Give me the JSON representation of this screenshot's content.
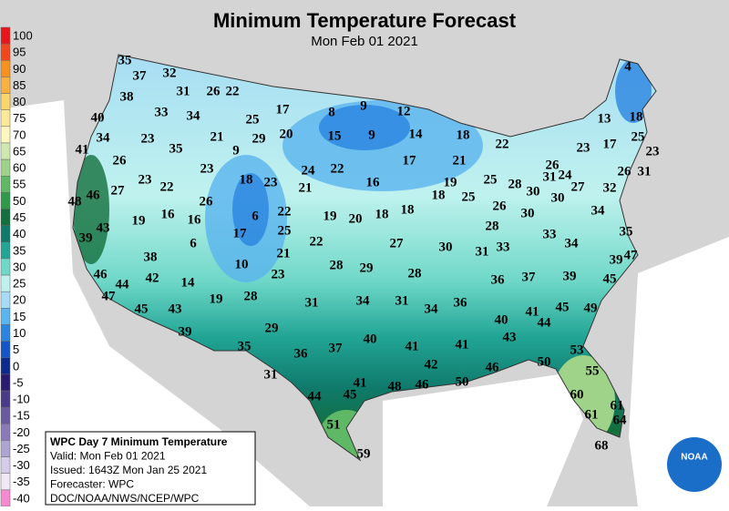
{
  "header": {
    "title": "Minimum Temperature Forecast",
    "subtitle": "Mon Feb 01 2021"
  },
  "legend": [
    {
      "value": 100,
      "color": "#e8161b"
    },
    {
      "value": 95,
      "color": "#f2461e"
    },
    {
      "value": 90,
      "color": "#f7921e"
    },
    {
      "value": 85,
      "color": "#fbb040"
    },
    {
      "value": 80,
      "color": "#fdd66a"
    },
    {
      "value": 75,
      "color": "#fde99a"
    },
    {
      "value": 70,
      "color": "#fff6c0"
    },
    {
      "value": 65,
      "color": "#cfe8b0"
    },
    {
      "value": 60,
      "color": "#9fd38a"
    },
    {
      "value": 55,
      "color": "#5fb865"
    },
    {
      "value": 50,
      "color": "#2e9a4a"
    },
    {
      "value": 45,
      "color": "#136f3c"
    },
    {
      "value": 40,
      "color": "#0f7a6c"
    },
    {
      "value": 35,
      "color": "#22a595"
    },
    {
      "value": 30,
      "color": "#6fd8c8"
    },
    {
      "value": 25,
      "color": "#bff2ee"
    },
    {
      "value": 20,
      "color": "#a6dcf4"
    },
    {
      "value": 15,
      "color": "#5ab4ee"
    },
    {
      "value": 10,
      "color": "#2a84e0"
    },
    {
      "value": 5,
      "color": "#1456c8"
    },
    {
      "value": 0,
      "color": "#0a2a8c"
    },
    {
      "value": -5,
      "color": "#2a1a70"
    },
    {
      "value": -10,
      "color": "#4a3a8a"
    },
    {
      "value": -15,
      "color": "#6a5aa0"
    },
    {
      "value": -20,
      "color": "#8a7ab8"
    },
    {
      "value": -25,
      "color": "#aea4d0"
    },
    {
      "value": -30,
      "color": "#d4cce8"
    },
    {
      "value": -35,
      "color": "#f0e8f4"
    },
    {
      "value": -40,
      "color": "#f58ad0"
    }
  ],
  "info_box": [
    "WPC Day 7 Minimum Temperature",
    "Valid: Mon Feb 01 2021",
    "Issued: 1643Z Mon Jan 25 2021",
    "Forecaster: WPC",
    "DOC/NOAA/NWS/NCEP/WPC"
  ],
  "logo": "NOAA",
  "stations": [
    35,
    37,
    32,
    31,
    26,
    22,
    38,
    40,
    33,
    34,
    25,
    17,
    8,
    9,
    12,
    4,
    13,
    18,
    41,
    34,
    23,
    35,
    21,
    9,
    29,
    20,
    15,
    9,
    14,
    18,
    22,
    23,
    17,
    25,
    23,
    26,
    23,
    24,
    22,
    17,
    21,
    16,
    19,
    25,
    26,
    31,
    24,
    26,
    31,
    23,
    22,
    18,
    23,
    21,
    18,
    25,
    26,
    28,
    30,
    30,
    27,
    32,
    48,
    46,
    27,
    26,
    22,
    19,
    20,
    18,
    18,
    30,
    34,
    19,
    16,
    16,
    6,
    25,
    28,
    43,
    17,
    22,
    27,
    30,
    31,
    33,
    33,
    34,
    35,
    39,
    6,
    21,
    47,
    39,
    38,
    10,
    28,
    29,
    28,
    23,
    36,
    37,
    39,
    46,
    42,
    44,
    14,
    45,
    47,
    19,
    28,
    31,
    34,
    31,
    34,
    36,
    45,
    43,
    45,
    49,
    40,
    41,
    44,
    39,
    29,
    35,
    36,
    37,
    40,
    41,
    41,
    43,
    53,
    42,
    46,
    50,
    31,
    41,
    48,
    46,
    50,
    55,
    44,
    45,
    60,
    61,
    61,
    64,
    51,
    68,
    59
  ]
}
